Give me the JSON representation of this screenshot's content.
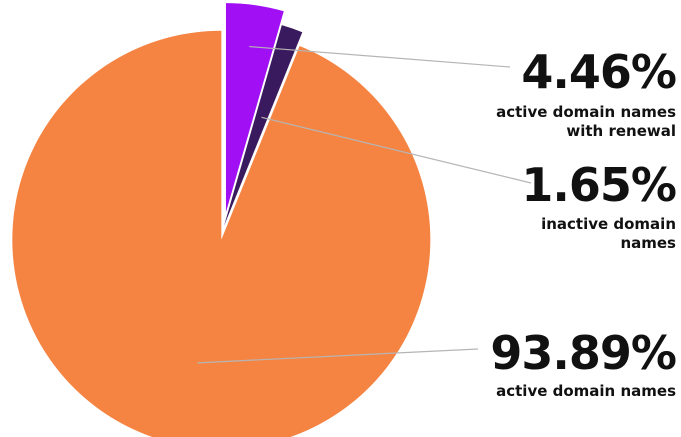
{
  "chart_data": {
    "type": "pie",
    "slices": [
      {
        "value": 4.46,
        "percent_label": "4.46%",
        "label_lines": [
          "active domain names",
          "with renewal"
        ],
        "color": "#a10ff5",
        "exploded": true
      },
      {
        "value": 1.65,
        "percent_label": "1.65%",
        "label_lines": [
          "inactive domain",
          "names"
        ],
        "color": "#3a1a5e",
        "exploded": false
      },
      {
        "value": 93.89,
        "percent_label": "93.89%",
        "label_lines": [
          "active domain names"
        ],
        "color": "#f58442",
        "exploded": true
      }
    ],
    "legend": "right",
    "leader_line_color": "#b5b5b5"
  }
}
